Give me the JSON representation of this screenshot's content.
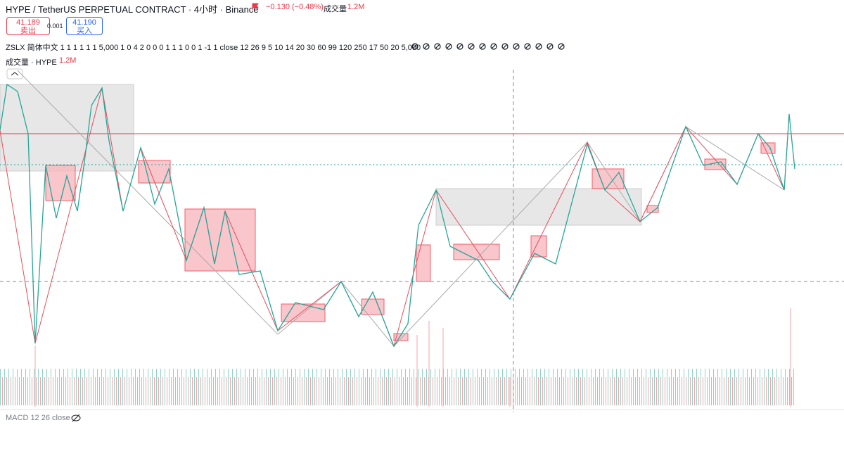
{
  "header": {
    "symbol": "HYPE / TetherUS PERPETUAL CONTRACT · 4小时 · Binance",
    "change": "−0.130 (−0.48%)",
    "volume_label": "成交量",
    "volume_value": "1.2M"
  },
  "trade": {
    "sell_price": "41.189",
    "sell_label": "卖出",
    "spread": "0.001",
    "buy_price": "41.190",
    "buy_label": "买入"
  },
  "indicator": {
    "text": "ZSLX 简体中文 1 1 1 1 1 1 5,000 1 0 4 2 0 0 0 1 1 1 0 0 1 -1 1 close 12 26 9 5 10 14 20 30 60 99 120 250 17 50 20 5,000"
  },
  "volume_pane": {
    "label": "成交量 · HYPE",
    "value": "1.2M"
  },
  "macd_pane": {
    "label": "MACD 12 26 close"
  }
}
